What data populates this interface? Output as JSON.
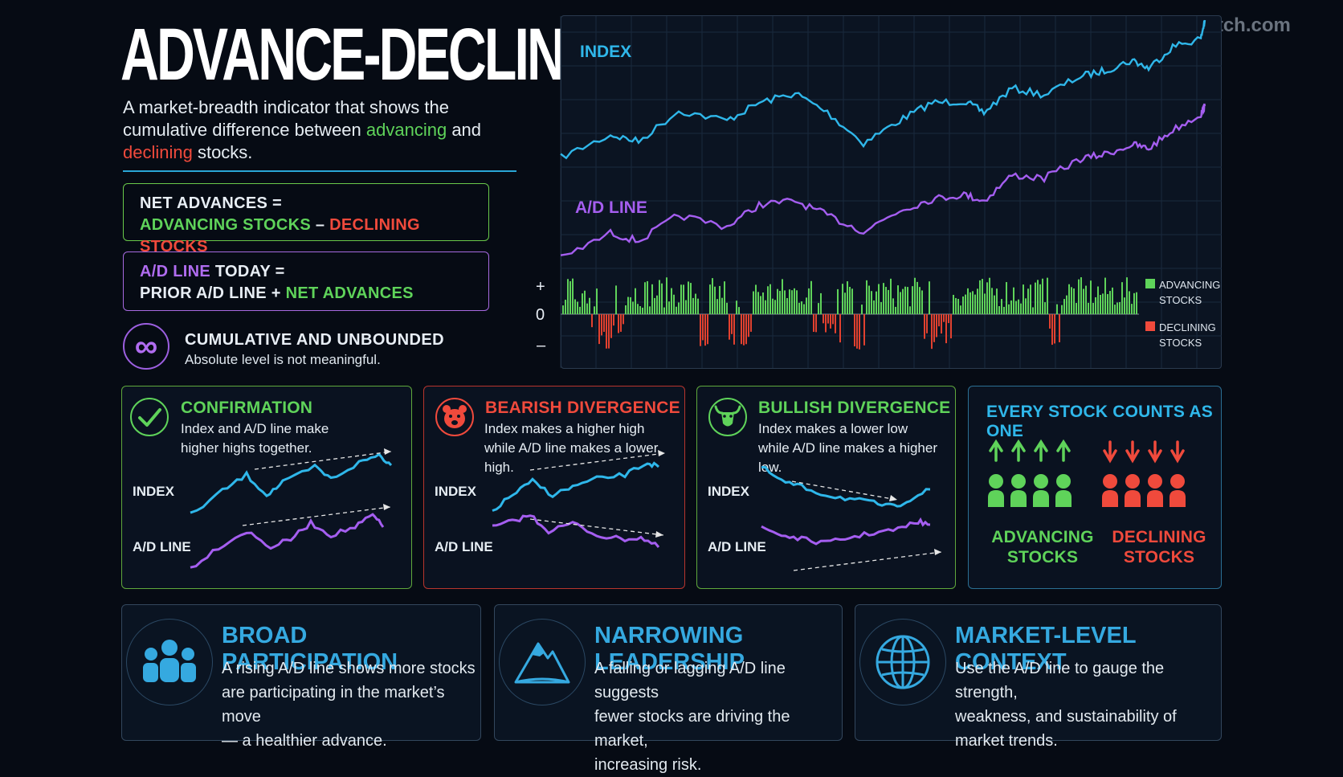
{
  "title": "ADVANCE-DECLINE LINE",
  "watermark": "StockMarketWatch.com",
  "subtitle": {
    "part1": "A market-breadth indicator that shows the cumulative difference between ",
    "advancing": "advancing",
    "part2": " and ",
    "declining": "declining",
    "part3": " stocks."
  },
  "formula1": {
    "line1": "NET ADVANCES =",
    "advancing": "ADVANCING STOCKS",
    "minus": " – ",
    "declining": "DECLINING STOCKS"
  },
  "formula2": {
    "ad": "A/D LINE",
    "today": " TODAY =",
    "prior": "PRIOR A/D LINE + ",
    "net": "NET ADVANCES"
  },
  "cumulative": {
    "symbol": "∞",
    "title": "CUMULATIVE AND UNBOUNDED",
    "subtitle": "Absolute level is not meaningful."
  },
  "main_chart": {
    "index_label": "INDEX",
    "ad_label": "A/D LINE",
    "plus": "+",
    "zero": "0",
    "minus": "–",
    "legend_adv_1": "ADVANCING",
    "legend_adv_2": "STOCKS",
    "legend_dec_1": "DECLINING",
    "legend_dec_2": "STOCKS"
  },
  "cards": {
    "confirmation": {
      "title": "CONFIRMATION",
      "desc1": "Index and A/D line make",
      "desc2": "higher highs together.",
      "index": "INDEX",
      "ad": "A/D LINE"
    },
    "bearish": {
      "title": "BEARISH DIVERGENCE",
      "desc1": "Index makes a higher high",
      "desc2": "while A/D line makes a lower high.",
      "index": "INDEX",
      "ad": "A/D LINE"
    },
    "bullish": {
      "title": "BULLISH DIVERGENCE",
      "desc1": "Index makes a lower low",
      "desc2": "while A/D line makes a higher low.",
      "index": "INDEX",
      "ad": "A/D LINE"
    },
    "every": {
      "title": "EVERY STOCK COUNTS AS ONE",
      "adv1": "ADVANCING",
      "adv2": "STOCKS",
      "dec1": "DECLINING",
      "dec2": "STOCKS"
    }
  },
  "bottom": [
    {
      "title": "BROAD PARTICIPATION",
      "l1": "A rising A/D line shows more stocks",
      "l2": "are participating in the market’s move",
      "l3": "— a healthier advance."
    },
    {
      "title": "NARROWING LEADERSHIP",
      "l1": "A falling or lagging A/D line suggests",
      "l2": "fewer stocks are driving the market,",
      "l3": "increasing risk."
    },
    {
      "title": "MARKET-LEVEL CONTEXT",
      "l1": "Use the A/D line to gauge the strength,",
      "l2": "weakness, and sustainability of",
      "l3": "market trends."
    }
  ],
  "colors": {
    "index": "#2fb7ea",
    "ad": "#a55ef0",
    "advancing": "#5fd35a",
    "declining": "#f04a3c"
  },
  "icons": {
    "confirmation": "check-icon",
    "bearish": "bear-icon",
    "bullish": "bull-icon",
    "participation": "people-icon",
    "leadership": "mountain-icon",
    "context": "globe-icon"
  }
}
